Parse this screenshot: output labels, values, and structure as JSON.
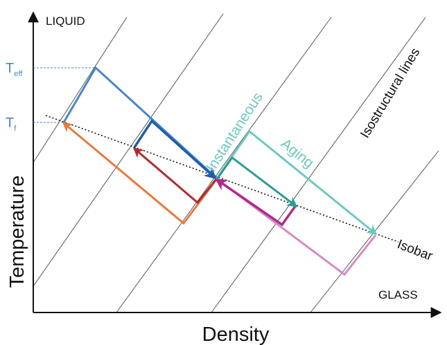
{
  "labels": {
    "liquid": "LIQUID",
    "glass": "GLASS",
    "t_eff_main": "T",
    "t_eff_sub": "eff",
    "t_f_main": "T",
    "t_f_sub": "f",
    "instantaneous": "Instantaneous",
    "aging": "Aging",
    "isostructural": "Isostructural lines",
    "isobar": "Isobar"
  },
  "axes": {
    "x_label": "Density",
    "y_label": "Temperature"
  },
  "colors": {
    "axis": "#111111",
    "isostructural_line": "#555555",
    "isobar": "#111111",
    "t_guide": "#4a86c8",
    "t_label": "#4a86c8",
    "blue_light": "#4a86c8",
    "blue_dark": "#1f5fa8",
    "orange": "#e87a3d",
    "red": "#b02a2a",
    "magenta": "#b0298b",
    "pink": "#d68ac4",
    "teal_light": "#6ec8c0",
    "teal_dark": "#2a9e94",
    "instantaneous_text": "#6ec8c0",
    "aging_text": "#6ec8c0"
  }
}
